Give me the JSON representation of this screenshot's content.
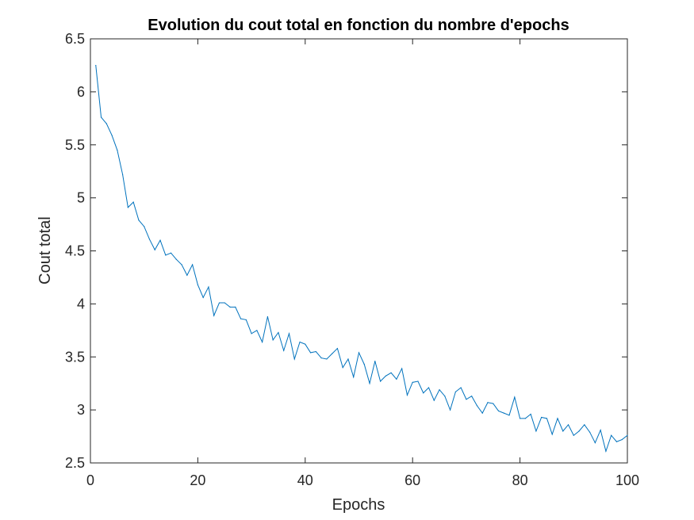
{
  "chart_data": {
    "type": "line",
    "title": "Evolution du cout total en fonction du nombre d'epochs",
    "xlabel": "Epochs",
    "ylabel": "Cout total",
    "xlim": [
      0,
      100
    ],
    "ylim": [
      2.5,
      6.5
    ],
    "xticks": [
      "0",
      "20",
      "40",
      "60",
      "80",
      "100"
    ],
    "yticks": [
      "2.5",
      "3",
      "3.5",
      "4",
      "4.5",
      "5",
      "5.5",
      "6",
      "6.5"
    ],
    "grid": false,
    "line_color": "#0072BD",
    "series": [
      {
        "x": [
          1,
          2,
          3,
          4,
          5,
          6,
          7,
          8,
          9,
          10,
          11,
          12,
          13,
          14,
          15,
          16,
          17,
          18,
          19,
          20,
          21,
          22,
          23,
          24,
          25,
          26,
          27,
          28,
          29,
          30,
          31,
          32,
          33,
          34,
          35,
          36,
          37,
          38,
          39,
          40,
          41,
          42,
          43,
          44,
          45,
          46,
          47,
          48,
          49,
          50,
          51,
          52,
          53,
          54,
          55,
          56,
          57,
          58,
          59,
          60,
          61,
          62,
          63,
          64,
          65,
          66,
          67,
          68,
          69,
          70,
          71,
          72,
          73,
          74,
          75,
          76,
          77,
          78,
          79,
          80,
          81,
          82,
          83,
          84,
          85,
          86,
          87,
          88,
          89,
          90,
          91,
          92,
          93,
          94,
          95,
          96,
          97,
          98,
          99,
          100
        ],
        "values": [
          6.25,
          5.76,
          5.7,
          5.59,
          5.45,
          5.22,
          4.91,
          4.96,
          4.79,
          4.73,
          4.61,
          4.51,
          4.6,
          4.46,
          4.48,
          4.42,
          4.37,
          4.27,
          4.37,
          4.18,
          4.06,
          4.16,
          3.89,
          4.01,
          4.01,
          3.97,
          3.97,
          3.86,
          3.85,
          3.72,
          3.75,
          3.64,
          3.88,
          3.66,
          3.73,
          3.56,
          3.72,
          3.48,
          3.64,
          3.62,
          3.54,
          3.55,
          3.49,
          3.48,
          3.53,
          3.58,
          3.4,
          3.48,
          3.31,
          3.54,
          3.43,
          3.25,
          3.46,
          3.27,
          3.32,
          3.35,
          3.29,
          3.39,
          3.14,
          3.26,
          3.27,
          3.16,
          3.21,
          3.09,
          3.19,
          3.13,
          3.0,
          3.17,
          3.21,
          3.1,
          3.13,
          3.04,
          2.97,
          3.07,
          3.06,
          2.99,
          2.97,
          2.95,
          3.12,
          2.92,
          2.92,
          2.96,
          2.8,
          2.93,
          2.92,
          2.77,
          2.92,
          2.8,
          2.86,
          2.76,
          2.8,
          2.86,
          2.79,
          2.69,
          2.81,
          2.61,
          2.76,
          2.7,
          2.72,
          2.76
        ]
      }
    ]
  }
}
